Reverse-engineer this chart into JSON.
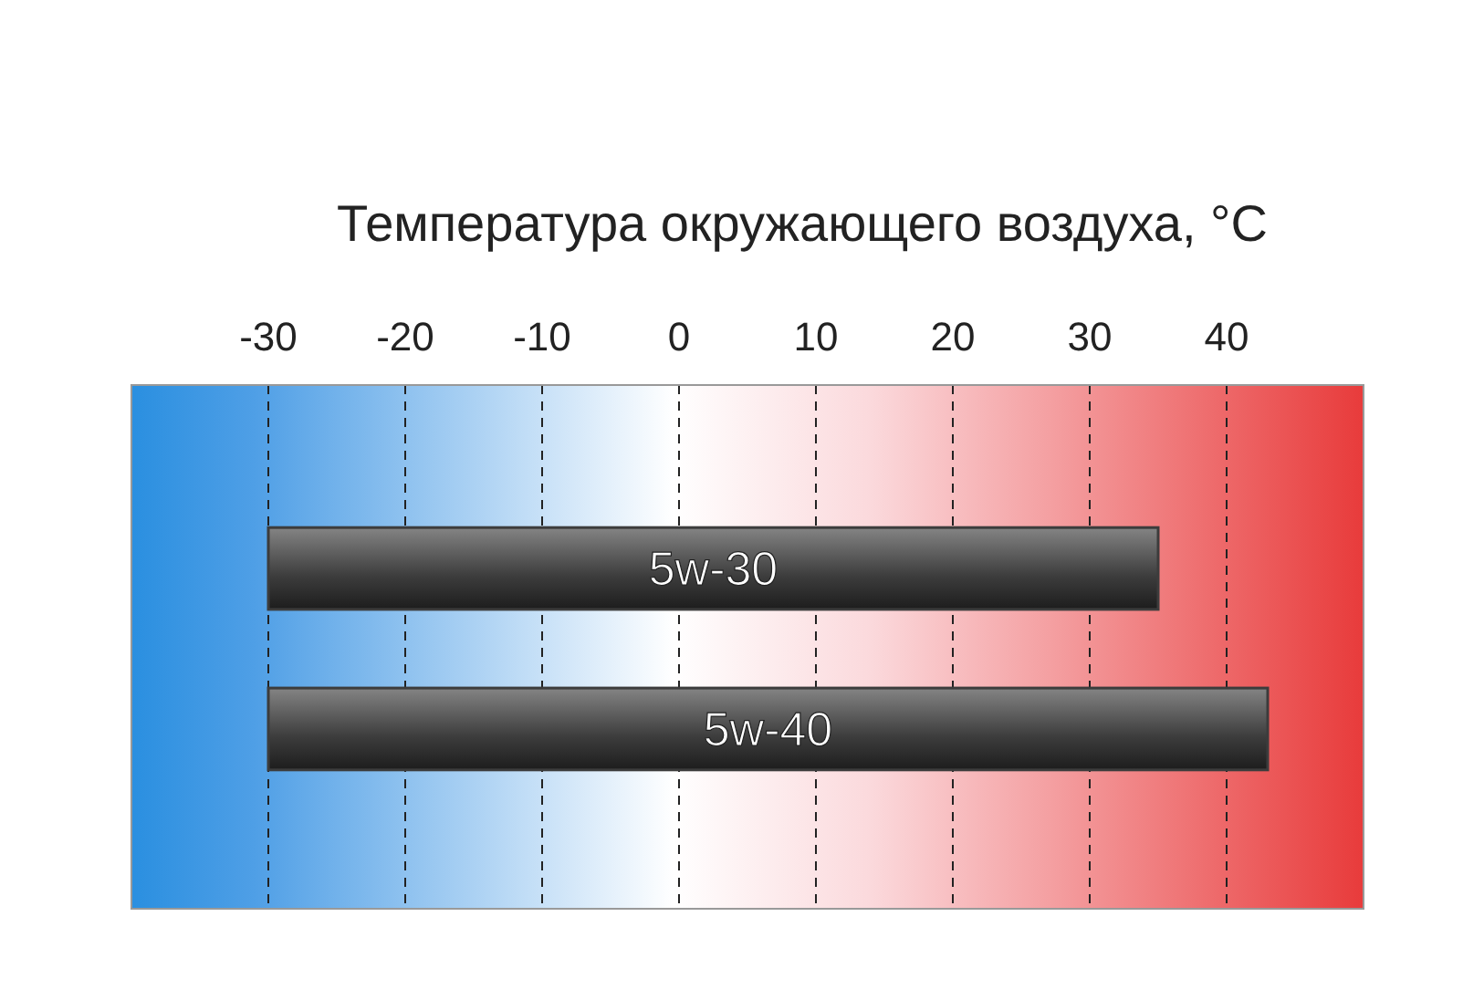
{
  "chart_data": {
    "type": "bar",
    "orientation": "horizontal",
    "xlabel": "Температура окружающего воздуха, °C",
    "categories": [
      "5w-30",
      "5w-40"
    ],
    "base": [
      -30,
      -30
    ],
    "values": [
      65,
      73
    ],
    "color": "#3c3c3c",
    "xlim": [
      -40,
      50
    ],
    "xticks": [
      -30,
      -20,
      -10,
      0,
      10,
      20,
      30,
      40
    ],
    "grid": "x"
  }
}
